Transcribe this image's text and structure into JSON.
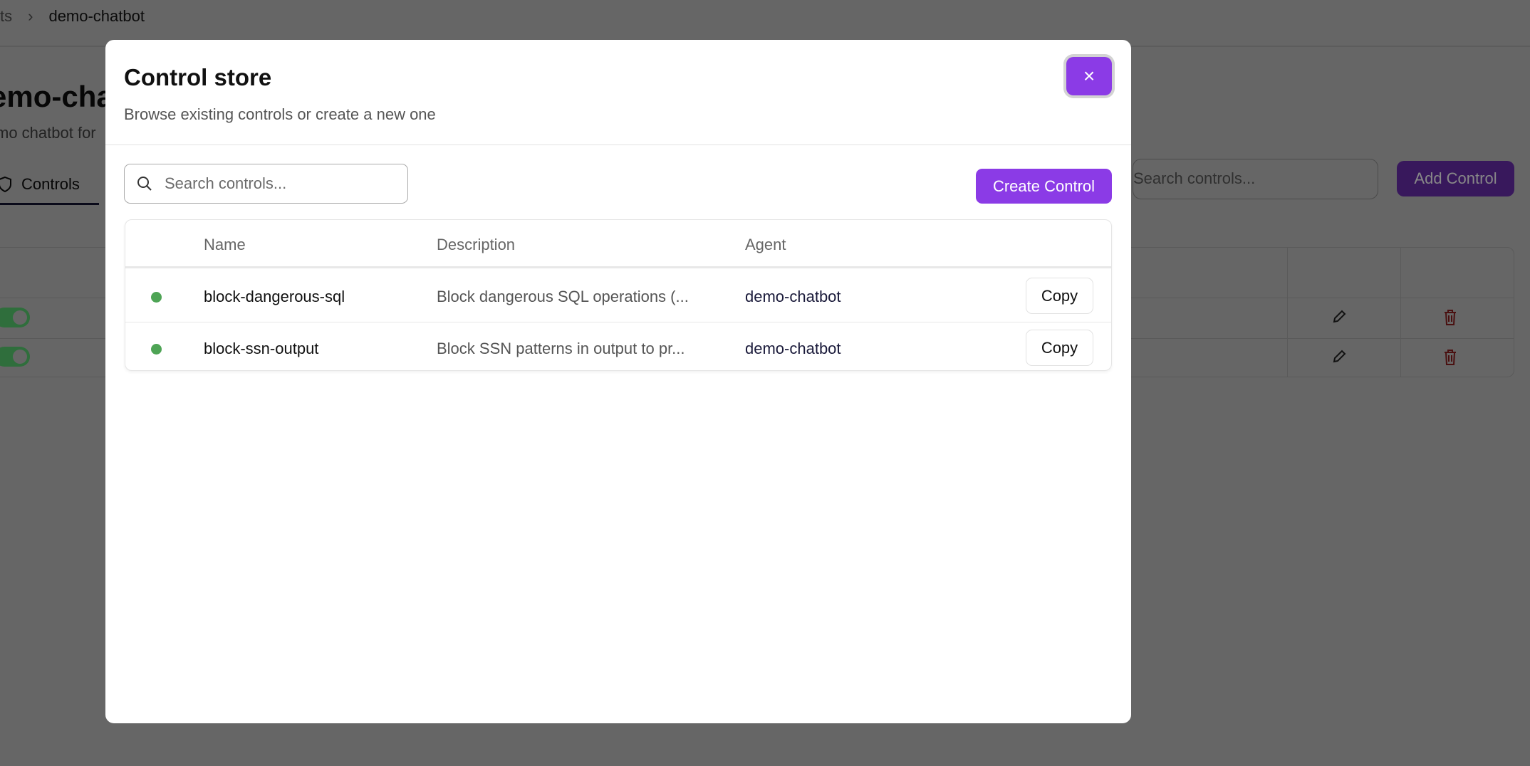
{
  "background": {
    "breadcrumb": {
      "parent": "ts",
      "separator": "›",
      "current": "demo-chatbot"
    },
    "page_title": "emo-cha",
    "page_subtitle": "mo chatbot for",
    "tab_label": "Controls",
    "search_placeholder": "Search controls...",
    "add_button": "Add Control",
    "rows": [
      {
        "enabled": true
      },
      {
        "enabled": true
      }
    ]
  },
  "modal": {
    "title": "Control store",
    "subtitle": "Browse existing controls or create a new one",
    "close_icon": "×",
    "search_placeholder": "Search controls...",
    "create_button": "Create Control",
    "columns": {
      "name": "Name",
      "description": "Description",
      "agent": "Agent"
    },
    "rows": [
      {
        "status": "active",
        "name": "block-dangerous-sql",
        "description": "Block dangerous SQL operations (...",
        "agent": "demo-chatbot",
        "action": "Copy"
      },
      {
        "status": "active",
        "name": "block-ssn-output",
        "description": "Block SSN patterns in output to pr...",
        "agent": "demo-chatbot",
        "action": "Copy"
      }
    ]
  },
  "colors": {
    "accent": "#8b3be6",
    "status_active": "#4ea455"
  }
}
